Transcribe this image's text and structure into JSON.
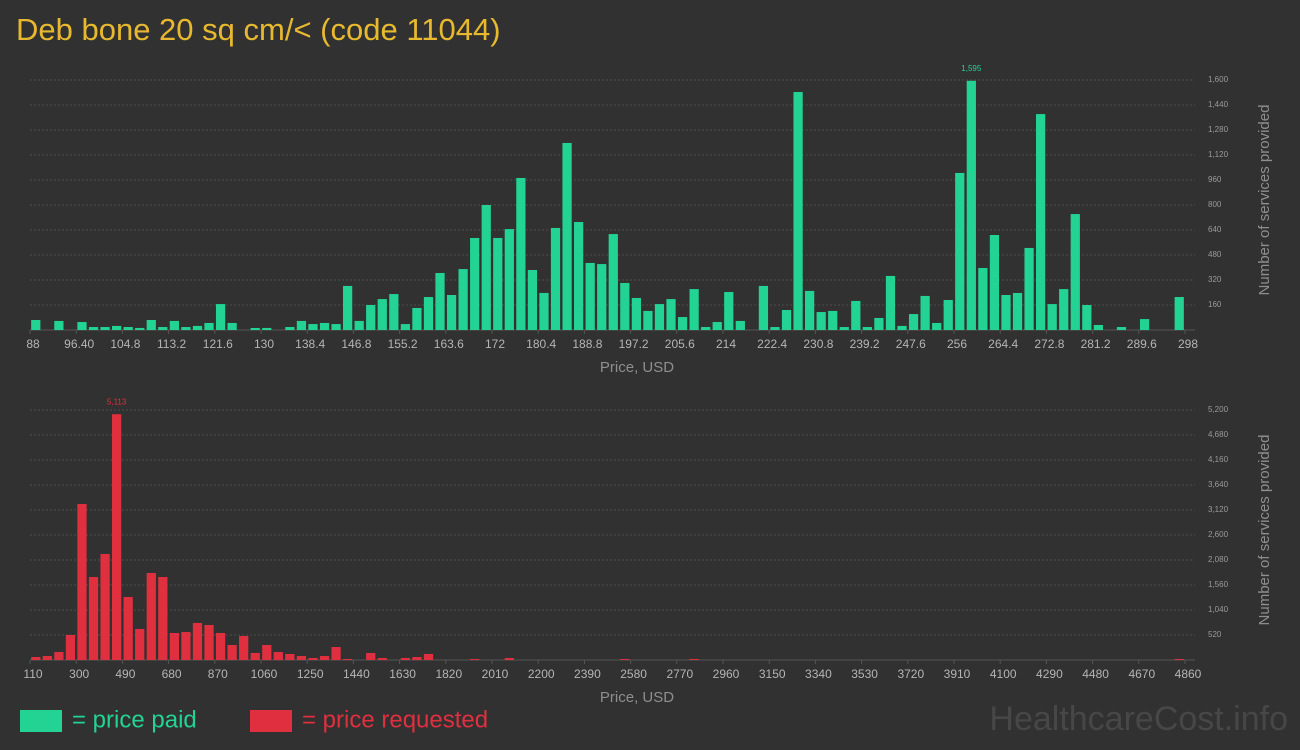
{
  "title": "Deb bone 20 sq cm/< (code 11044)",
  "watermark": "HealthcareCost.info",
  "chart_data": [
    {
      "type": "histogram",
      "name": "= price paid",
      "color": "#22d394",
      "xlabel": "Price, USD",
      "ylabel": "Number of services provided",
      "xlim": [
        88,
        298
      ],
      "bins": [
        88,
        90.1,
        92.2,
        94.3,
        96.4,
        98.5,
        100.6,
        102.7,
        104.8,
        106.9,
        109,
        111.1,
        113.2,
        115.3,
        117.4,
        119.5,
        121.6,
        123.7,
        125.8,
        127.9,
        130,
        132.1,
        134.2,
        136.3,
        138.4,
        140.5,
        142.6,
        144.7,
        146.8,
        148.9,
        151,
        153.1,
        155.2,
        157.3,
        159.4,
        161.5,
        163.6,
        165.7,
        167.8,
        169.9,
        172,
        174.1,
        176.2,
        178.3,
        180.4,
        182.5,
        184.6,
        186.7,
        188.8,
        190.9,
        193,
        195.1,
        197.2,
        199.3,
        201.4,
        203.5,
        205.6,
        207.7,
        209.8,
        211.9,
        214,
        216.1,
        218.2,
        220.3,
        222.4,
        224.5,
        226.6,
        228.7,
        230.8,
        232.9,
        235,
        237.1,
        239.2,
        241.3,
        243.4,
        245.5,
        247.6,
        249.7,
        251.8,
        253.9,
        256,
        258.1,
        260.2,
        262.3,
        264.4,
        266.5,
        268.6,
        270.7,
        272.8,
        274.9,
        277,
        279.1,
        281.2,
        283.3,
        285.4,
        287.5,
        289.6,
        291.7,
        293.8,
        295.9,
        298
      ],
      "values": [
        64,
        0,
        58,
        0,
        51,
        19,
        19,
        26,
        19,
        13,
        64,
        19,
        58,
        19,
        26,
        45,
        166,
        45,
        0,
        13,
        13,
        0,
        19,
        58,
        38,
        45,
        38,
        282,
        58,
        160,
        198,
        230,
        38,
        141,
        211,
        365,
        224,
        390,
        589,
        800,
        589,
        646,
        973,
        384,
        237,
        653,
        1197,
        691,
        429,
        422,
        614,
        301,
        205,
        122,
        166,
        198,
        83,
        262,
        19,
        51,
        243,
        58,
        0,
        282,
        19,
        128,
        1523,
        250,
        115,
        122,
        19,
        186,
        19,
        77,
        346,
        26,
        102,
        218,
        45,
        192,
        1005,
        1595,
        397,
        608,
        224,
        237,
        525,
        1382,
        166,
        262,
        742,
        160,
        32,
        0,
        19,
        0,
        70,
        0,
        0,
        211
      ],
      "value_labels": [
        null,
        null,
        null,
        null,
        null,
        null,
        null,
        null,
        null,
        null,
        null,
        null,
        null,
        null,
        null,
        null,
        null,
        null,
        null,
        null,
        null,
        null,
        null,
        null,
        null,
        null,
        null,
        null,
        null,
        null,
        null,
        null,
        null,
        null,
        null,
        null,
        null,
        null,
        null,
        null,
        null,
        null,
        null,
        null,
        null,
        null,
        null,
        null,
        null,
        null,
        null,
        null,
        null,
        null,
        null,
        null,
        null,
        null,
        null,
        null,
        null,
        null,
        null,
        null,
        null,
        null,
        null,
        null,
        null,
        null,
        null,
        null,
        null,
        null,
        null,
        null,
        null,
        null,
        null,
        null,
        null,
        "1,595",
        null,
        null,
        null,
        null,
        null,
        null,
        null,
        null,
        null,
        null,
        null,
        null,
        null,
        null,
        null,
        null,
        null,
        null
      ],
      "xticks": [
        88,
        {
          "value": 96.4,
          "label": "96.40"
        },
        104.8,
        113.2,
        121.6,
        130,
        138.4,
        146.8,
        155.2,
        163.6,
        172,
        180.4,
        188.8,
        197.2,
        205.6,
        214,
        222.4,
        230.8,
        239.2,
        247.6,
        256,
        264.4,
        272.8,
        281.2,
        289.6,
        298
      ],
      "ylim": [
        0,
        1600
      ],
      "yticks": [
        160,
        320,
        480,
        640,
        800,
        960,
        {
          "value": 1120,
          "label": "1,120"
        },
        {
          "value": 1280,
          "label": "1,280"
        },
        {
          "value": 1440,
          "label": "1,440"
        },
        {
          "value": 1600,
          "label": "1,600"
        }
      ],
      "grid": true
    },
    {
      "type": "histogram",
      "name": "= price requested",
      "color": "#e0303f",
      "xlabel": "Price, USD",
      "ylabel": "Number of services provided",
      "xlim": [
        110,
        4860
      ],
      "bins": [
        110,
        157.5,
        205,
        252.5,
        300,
        347.5,
        395,
        442.5,
        490,
        537.5,
        585,
        632.5,
        680,
        727.5,
        775,
        822.5,
        870,
        917.5,
        965,
        1012.5,
        1060,
        1107.5,
        1155,
        1202.5,
        1250,
        1297.5,
        1345,
        1392.5,
        1440,
        1487.5,
        1535,
        1582.5,
        1630,
        1677.5,
        1725,
        1772.5,
        1820,
        1867.5,
        1915,
        1962.5,
        2010,
        2057.5,
        2105,
        2152.5,
        2200,
        2247.5,
        2295,
        2342.5,
        2390,
        2437.5,
        2485,
        2532.5,
        2580,
        2627.5,
        2675,
        2722.5,
        2770,
        2817.5,
        2865,
        2912.5,
        2960,
        3007.5,
        3055,
        3102.5,
        3150,
        3197.5,
        3245,
        3292.5,
        3340,
        3387.5,
        3435,
        3482.5,
        3530,
        3577.5,
        3625,
        3672.5,
        3720,
        3767.5,
        3815,
        3862.5,
        3910,
        3957.5,
        4005,
        4052.5,
        4100,
        4147.5,
        4195,
        4242.5,
        4290,
        4337.5,
        4385,
        4432.5,
        4480,
        4527.5,
        4575,
        4622.5,
        4670,
        4717.5,
        4765,
        4812.5,
        4860
      ],
      "values": [
        62,
        83,
        166,
        520,
        3245,
        1726,
        2205,
        5113,
        1310,
        645,
        1810,
        1726,
        562,
        582,
        770,
        728,
        562,
        312,
        499,
        146,
        312,
        166,
        125,
        83,
        42,
        83,
        270,
        21,
        0,
        146,
        42,
        0,
        42,
        62,
        125,
        0,
        0,
        0,
        21,
        0,
        0,
        42,
        0,
        0,
        0,
        0,
        0,
        0,
        0,
        0,
        0,
        21,
        0,
        0,
        0,
        0,
        0,
        21,
        0,
        0,
        0,
        0,
        0,
        0,
        0,
        0,
        0,
        0,
        0,
        0,
        0,
        0,
        0,
        0,
        0,
        0,
        0,
        0,
        0,
        0,
        0,
        0,
        0,
        0,
        0,
        0,
        0,
        0,
        0,
        0,
        0,
        0,
        0,
        0,
        0,
        0,
        0,
        0,
        0,
        21
      ],
      "value_labels": [
        null,
        null,
        null,
        null,
        null,
        null,
        null,
        "5,113",
        null,
        null,
        null,
        null,
        null,
        null,
        null,
        null,
        null,
        null,
        null,
        null,
        null,
        null,
        null,
        null,
        null,
        null,
        null,
        null,
        null,
        null,
        null,
        null,
        null,
        null,
        null,
        null,
        null,
        null,
        null,
        null,
        null,
        null,
        null,
        null,
        null,
        null,
        null,
        null,
        null,
        null,
        null,
        null,
        null,
        null,
        null,
        null,
        null,
        null,
        null,
        null,
        null,
        null,
        null,
        null,
        null,
        null,
        null,
        null,
        null,
        null,
        null,
        null,
        null,
        null,
        null,
        null,
        null,
        null,
        null,
        null,
        null,
        null,
        null,
        null,
        null,
        null,
        null,
        null,
        null,
        null,
        null,
        null,
        null,
        null,
        null,
        null,
        null,
        null,
        null,
        null
      ],
      "xticks": [
        110,
        300,
        490,
        680,
        870,
        1060,
        1250,
        1440,
        1630,
        1820,
        2010,
        2200,
        2390,
        2580,
        2770,
        2960,
        3150,
        3340,
        3530,
        3720,
        3910,
        4100,
        4290,
        4480,
        4670,
        4860
      ],
      "ylim": [
        0,
        5200
      ],
      "yticks": [
        520,
        {
          "value": 1040,
          "label": "1,040"
        },
        {
          "value": 1560,
          "label": "1,560"
        },
        {
          "value": 2080,
          "label": "2,080"
        },
        {
          "value": 2600,
          "label": "2,600"
        },
        {
          "value": 3120,
          "label": "3,120"
        },
        {
          "value": 3640,
          "label": "3,640"
        },
        {
          "value": 4160,
          "label": "4,160"
        },
        {
          "value": 4680,
          "label": "4,680"
        },
        {
          "value": 5200,
          "label": "5,200"
        }
      ],
      "grid": true
    }
  ]
}
